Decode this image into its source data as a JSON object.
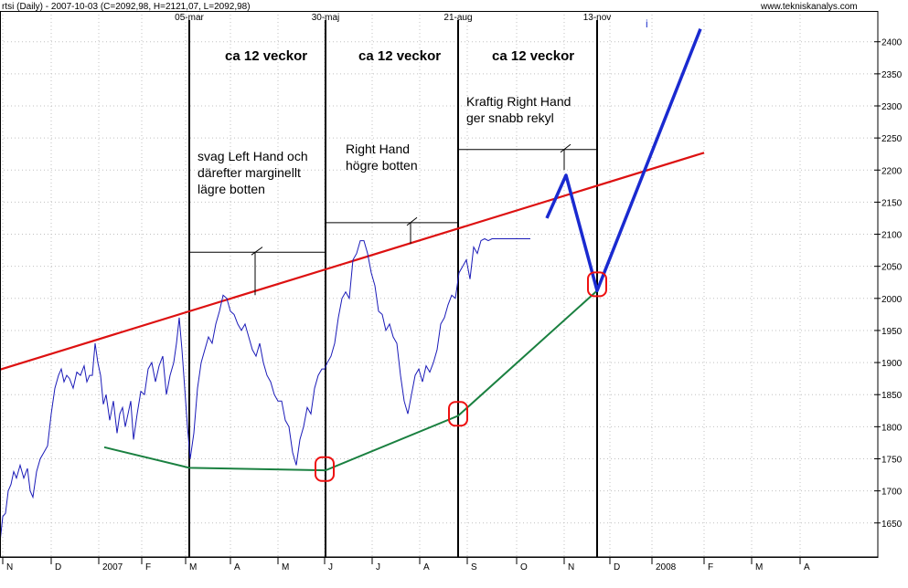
{
  "chart_data": {
    "type": "line",
    "title": "rtsi (Daily) - 2007-10-03 (C=2092,98, H=2121,07, L=2092,98)",
    "source": "www.tekniskanalys.com",
    "y_axis": {
      "ticks": [
        1650,
        1700,
        1750,
        1800,
        1850,
        1900,
        1950,
        2000,
        2050,
        2100,
        2150,
        2200,
        2250,
        2300,
        2350,
        2400
      ],
      "range": [
        1597,
        2448
      ],
      "position": "right"
    },
    "x_axis": {
      "labels": [
        "N",
        "D",
        "2007",
        "F",
        "M",
        "A",
        "M",
        "J",
        "J",
        "A",
        "S",
        "O",
        "N",
        "D",
        "2008",
        "F",
        "M",
        "A"
      ]
    },
    "date_markers": [
      "05-mar",
      "30-maj",
      "21-aug",
      "13-nov"
    ],
    "period_labels": [
      "ca 12 veckor",
      "ca 12 veckor",
      "ca 12 veckor"
    ],
    "annotations": {
      "left_hand": [
        "svag Left Hand och",
        "därefter marginellt",
        "lägre botten"
      ],
      "right_hand": [
        "Right Hand",
        "högre botten"
      ],
      "strong_right_hand": [
        "Kraftig Right Hand",
        "ger snabb rekyl"
      ],
      "info_mark": "i"
    },
    "series": [
      {
        "name": "",
        "color": "#1a1ab8",
        "x": [
          0,
          3,
          6,
          9,
          12,
          15,
          18,
          22,
          26,
          30,
          33,
          36,
          40,
          44,
          48,
          52,
          56,
          60,
          64,
          67,
          70,
          73,
          76,
          80,
          84,
          88,
          92,
          95,
          98,
          101,
          104,
          107,
          110,
          113,
          116,
          120,
          124,
          128,
          131,
          134,
          137,
          140,
          143,
          146,
          150,
          154,
          158,
          162,
          166,
          170,
          174,
          178,
          182,
          186,
          190,
          193,
          196,
          199,
          202,
          205,
          208,
          212,
          216,
          220,
          224,
          228,
          232,
          236,
          240,
          244,
          248,
          252,
          256,
          260,
          264,
          268,
          272,
          276,
          280,
          284,
          288,
          292,
          296,
          300,
          304,
          308,
          312,
          316,
          320,
          324,
          328,
          332,
          336,
          340,
          344,
          348,
          352,
          355,
          358,
          362,
          366,
          370,
          374,
          378,
          382,
          386,
          390,
          394,
          398,
          402,
          406,
          410,
          414,
          418,
          422,
          426,
          430,
          434,
          438,
          442,
          446,
          450,
          454,
          458,
          462,
          466,
          470,
          474,
          478,
          482,
          486,
          490,
          494,
          498,
          502,
          506,
          510,
          514,
          518,
          522,
          526,
          530,
          534,
          538,
          542,
          546,
          550,
          554,
          558,
          562,
          566,
          570,
          574,
          578,
          580
        ],
        "values": [
          1620,
          1660,
          1665,
          1700,
          1710,
          1730,
          1720,
          1740,
          1720,
          1735,
          1700,
          1690,
          1730,
          1750,
          1760,
          1770,
          1820,
          1860,
          1880,
          1890,
          1870,
          1880,
          1875,
          1860,
          1885,
          1880,
          1895,
          1870,
          1880,
          1880,
          1930,
          1900,
          1880,
          1835,
          1850,
          1810,
          1840,
          1790,
          1820,
          1830,
          1800,
          1820,
          1840,
          1780,
          1820,
          1855,
          1850,
          1890,
          1900,
          1870,
          1895,
          1910,
          1850,
          1880,
          1900,
          1930,
          1970,
          1920,
          1860,
          1800,
          1750,
          1790,
          1860,
          1900,
          1920,
          1940,
          1930,
          1960,
          1980,
          2005,
          2000,
          1980,
          1975,
          1960,
          1950,
          1960,
          1940,
          1920,
          1910,
          1930,
          1900,
          1880,
          1870,
          1850,
          1840,
          1840,
          1810,
          1800,
          1760,
          1740,
          1780,
          1800,
          1830,
          1820,
          1860,
          1880,
          1890,
          1890,
          1900,
          1910,
          1930,
          1970,
          2000,
          2010,
          2000,
          2060,
          2070,
          2090,
          2090,
          2070,
          2040,
          2020,
          1980,
          1975,
          1950,
          1960,
          1940,
          1930,
          1880,
          1840,
          1820,
          1850,
          1880,
          1890,
          1870,
          1895,
          1885,
          1900,
          1920,
          1960,
          1970,
          1990,
          2005,
          2000,
          2040,
          2050,
          2060,
          2030,
          2080,
          2070,
          2090,
          2093,
          2090,
          2093,
          2093,
          2093,
          2093,
          2093,
          2093,
          2093,
          2093,
          2093,
          2093,
          2093,
          2093
        ]
      }
    ]
  }
}
